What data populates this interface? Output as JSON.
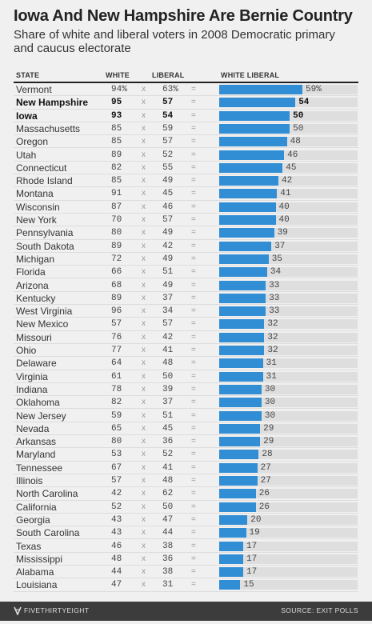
{
  "title": "Iowa And New Hampshire Are Bernie Country",
  "subtitle": "Share of white and liberal voters in 2008 Democratic primary and caucus electorate",
  "columns": {
    "state": "STATE",
    "white": "WHITE",
    "liberal": "LIBERAL",
    "white_liberal": "WHITE LIBERAL"
  },
  "operators": {
    "times": "x",
    "equals": "="
  },
  "footer": {
    "brand": "FIVETHIRTYEIGHT",
    "source": "SOURCE: EXIT POLLS",
    "logo_icon": "fivethirtyeight-logo-icon"
  },
  "colors": {
    "bar": "#318ed5",
    "track": "#dedede",
    "background": "#f0f0f0",
    "footer": "#3c3c3c"
  },
  "chart_data": {
    "type": "bar",
    "orientation": "horizontal",
    "xlim": [
      0,
      59
    ],
    "highlighted": [
      "New Hampshire",
      "Iowa"
    ],
    "rows": [
      {
        "state": "Vermont",
        "white": "94%",
        "liberal": "63%",
        "white_liberal": "59%"
      },
      {
        "state": "New Hampshire",
        "white": "95",
        "liberal": "57",
        "white_liberal": "54"
      },
      {
        "state": "Iowa",
        "white": "93",
        "liberal": "54",
        "white_liberal": "50"
      },
      {
        "state": "Massachusetts",
        "white": "85",
        "liberal": "59",
        "white_liberal": "50"
      },
      {
        "state": "Oregon",
        "white": "85",
        "liberal": "57",
        "white_liberal": "48"
      },
      {
        "state": "Utah",
        "white": "89",
        "liberal": "52",
        "white_liberal": "46"
      },
      {
        "state": "Connecticut",
        "white": "82",
        "liberal": "55",
        "white_liberal": "45"
      },
      {
        "state": "Rhode Island",
        "white": "85",
        "liberal": "49",
        "white_liberal": "42"
      },
      {
        "state": "Montana",
        "white": "91",
        "liberal": "45",
        "white_liberal": "41"
      },
      {
        "state": "Wisconsin",
        "white": "87",
        "liberal": "46",
        "white_liberal": "40"
      },
      {
        "state": "New York",
        "white": "70",
        "liberal": "57",
        "white_liberal": "40"
      },
      {
        "state": "Pennsylvania",
        "white": "80",
        "liberal": "49",
        "white_liberal": "39"
      },
      {
        "state": "South Dakota",
        "white": "89",
        "liberal": "42",
        "white_liberal": "37"
      },
      {
        "state": "Michigan",
        "white": "72",
        "liberal": "49",
        "white_liberal": "35"
      },
      {
        "state": "Florida",
        "white": "66",
        "liberal": "51",
        "white_liberal": "34"
      },
      {
        "state": "Arizona",
        "white": "68",
        "liberal": "49",
        "white_liberal": "33"
      },
      {
        "state": "Kentucky",
        "white": "89",
        "liberal": "37",
        "white_liberal": "33"
      },
      {
        "state": "West Virginia",
        "white": "96",
        "liberal": "34",
        "white_liberal": "33"
      },
      {
        "state": "New Mexico",
        "white": "57",
        "liberal": "57",
        "white_liberal": "32"
      },
      {
        "state": "Missouri",
        "white": "76",
        "liberal": "42",
        "white_liberal": "32"
      },
      {
        "state": "Ohio",
        "white": "77",
        "liberal": "41",
        "white_liberal": "32"
      },
      {
        "state": "Delaware",
        "white": "64",
        "liberal": "48",
        "white_liberal": "31"
      },
      {
        "state": "Virginia",
        "white": "61",
        "liberal": "50",
        "white_liberal": "31"
      },
      {
        "state": "Indiana",
        "white": "78",
        "liberal": "39",
        "white_liberal": "30"
      },
      {
        "state": "Oklahoma",
        "white": "82",
        "liberal": "37",
        "white_liberal": "30"
      },
      {
        "state": "New Jersey",
        "white": "59",
        "liberal": "51",
        "white_liberal": "30"
      },
      {
        "state": "Nevada",
        "white": "65",
        "liberal": "45",
        "white_liberal": "29"
      },
      {
        "state": "Arkansas",
        "white": "80",
        "liberal": "36",
        "white_liberal": "29"
      },
      {
        "state": "Maryland",
        "white": "53",
        "liberal": "52",
        "white_liberal": "28"
      },
      {
        "state": "Tennessee",
        "white": "67",
        "liberal": "41",
        "white_liberal": "27"
      },
      {
        "state": "Illinois",
        "white": "57",
        "liberal": "48",
        "white_liberal": "27"
      },
      {
        "state": "North Carolina",
        "white": "42",
        "liberal": "62",
        "white_liberal": "26"
      },
      {
        "state": "California",
        "white": "52",
        "liberal": "50",
        "white_liberal": "26"
      },
      {
        "state": "Georgia",
        "white": "43",
        "liberal": "47",
        "white_liberal": "20"
      },
      {
        "state": "South Carolina",
        "white": "43",
        "liberal": "44",
        "white_liberal": "19"
      },
      {
        "state": "Texas",
        "white": "46",
        "liberal": "38",
        "white_liberal": "17"
      },
      {
        "state": "Mississippi",
        "white": "48",
        "liberal": "36",
        "white_liberal": "17"
      },
      {
        "state": "Alabama",
        "white": "44",
        "liberal": "38",
        "white_liberal": "17"
      },
      {
        "state": "Louisiana",
        "white": "47",
        "liberal": "31",
        "white_liberal": "15"
      }
    ]
  }
}
